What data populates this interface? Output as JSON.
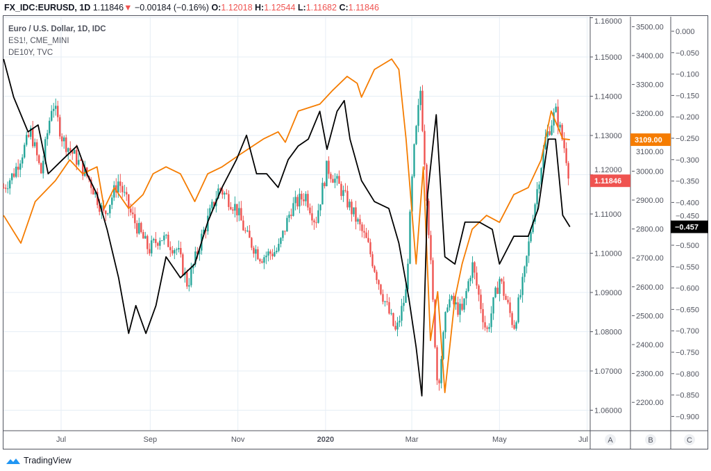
{
  "header": {
    "symbol": "FX_IDC:EURUSD, 1D",
    "last": "1.11846",
    "change": "−0.00184 (−0.16%)",
    "o_label": "O:",
    "o": "1.12018",
    "h_label": "H:",
    "h": "1.12544",
    "l_label": "L:",
    "l": "1.11682",
    "c_label": "C:",
    "c": "1.11846"
  },
  "legend": [
    "Euro / U.S. Dollar, 1D, IDC",
    "ES1!, CME_MINI",
    "DE10Y, TVC"
  ],
  "brand": "TradingView",
  "colors": {
    "up": "#26a69a",
    "down": "#ef5350",
    "es": "#f57c00",
    "de": "#000000",
    "grid": "#e6eef5"
  },
  "chart_data": {
    "type": "line",
    "x_unit": "days since 2019-07-01",
    "x_ticks": [
      {
        "label": "Jul",
        "t": 0
      },
      {
        "label": "Sep",
        "t": 62
      },
      {
        "label": "Nov",
        "t": 123
      },
      {
        "label": "2020",
        "t": 184
      },
      {
        "label": "Mar",
        "t": 244
      },
      {
        "label": "May",
        "t": 305
      },
      {
        "label": "Jul",
        "t": 366
      }
    ],
    "axes": [
      {
        "id": "A",
        "ticks": [
          "1.16000",
          "1.15000",
          "1.14000",
          "1.13000",
          "1.12000",
          "1.11000",
          "1.10000",
          "1.09000",
          "1.08000",
          "1.07000",
          "1.06000"
        ],
        "range": [
          1.0555,
          1.1603
        ],
        "last_label": "1.11846"
      },
      {
        "id": "B",
        "ticks": [
          "3500.00",
          "3400.00",
          "3300.00",
          "3200.00",
          "3100.00",
          "3000.00",
          "2900.00",
          "2800.00",
          "2700.00",
          "2600.00",
          "2500.00",
          "2400.00",
          "2300.00",
          "2200.00"
        ],
        "last_label": "3109.00"
      },
      {
        "id": "C",
        "ticks": [
          "0.000",
          "-0.050",
          "-0.100",
          "-0.150",
          "-0.200",
          "-0.250",
          "-0.300",
          "-0.350",
          "-0.400",
          "-0.450",
          "-0.500",
          "-0.550",
          "-0.600",
          "-0.650",
          "-0.700",
          "-0.750",
          "-0.800",
          "-0.850",
          "-0.900"
        ],
        "last_label": "-0.457"
      }
    ],
    "series": [
      {
        "name": "EURUSD",
        "type": "candlestick",
        "axis": "A",
        "t": [
          -40,
          -33,
          -21,
          -14,
          -6,
          1,
          11,
          20,
          30,
          40,
          49,
          61,
          69,
          81,
          88,
          98,
          110,
          122,
          129,
          139,
          151,
          160,
          170,
          177,
          185,
          194,
          204,
          213,
          223,
          233,
          240,
          245,
          250,
          255,
          262,
          269,
          279,
          286,
          296,
          305,
          315,
          322,
          329,
          337,
          344,
          351,
          354
        ],
        "close": [
          1.1167,
          1.1203,
          1.1309,
          1.1203,
          1.1388,
          1.1291,
          1.1238,
          1.1185,
          1.1096,
          1.1185,
          1.1096,
          1.1008,
          1.1043,
          1.1008,
          1.0919,
          1.1043,
          1.1167,
          1.1114,
          1.1043,
          1.099,
          1.1008,
          1.1114,
          1.115,
          1.1079,
          1.122,
          1.1167,
          1.1096,
          1.1026,
          1.0902,
          1.0796,
          1.0902,
          1.1238,
          1.1415,
          1.1114,
          1.0654,
          1.0884,
          1.0849,
          1.0973,
          1.0796,
          1.0937,
          1.0813,
          1.0937,
          1.1114,
          1.1291,
          1.1362,
          1.1256,
          1.11846
        ]
      },
      {
        "name": "ES1!",
        "axis": "B",
        "t": [
          -40,
          -28,
          -18,
          -4,
          6,
          15,
          25,
          30,
          37,
          47,
          57,
          64,
          73,
          83,
          93,
          102,
          112,
          126,
          141,
          151,
          156,
          165,
          180,
          189,
          199,
          206,
          209,
          218,
          226,
          230,
          235,
          240,
          247,
          252,
          257,
          262,
          267,
          274,
          279,
          286,
          296,
          305,
          315,
          325,
          334,
          341,
          349,
          354
        ],
        "values": [
          2847,
          2751,
          2895,
          2967,
          3039,
          2991,
          3015,
          2871,
          2943,
          2871,
          2919,
          2991,
          3015,
          2991,
          2895,
          2991,
          3015,
          3063,
          3112,
          3136,
          3100,
          3208,
          3232,
          3280,
          3328,
          3304,
          3256,
          3352,
          3376,
          3388,
          3352,
          3112,
          2679,
          3015,
          2414,
          2583,
          2234,
          2559,
          2679,
          2799,
          2847,
          2823,
          2919,
          2943,
          3039,
          3208,
          3112,
          3109
        ]
      },
      {
        "name": "DE10Y",
        "axis": "C",
        "t": [
          -40,
          -33,
          -23,
          -16,
          -9,
          1,
          11,
          18,
          25,
          32,
          40,
          47,
          52,
          59,
          66,
          73,
          83,
          93,
          102,
          112,
          122,
          129,
          136,
          143,
          151,
          158,
          165,
          172,
          180,
          185,
          192,
          197,
          201,
          209,
          218,
          228,
          235,
          242,
          247,
          251,
          255,
          261,
          267,
          274,
          281,
          291,
          300,
          305,
          315,
          325,
          332,
          339,
          344,
          349,
          354
        ],
        "values": [
          -0.065,
          -0.154,
          -0.235,
          -0.219,
          -0.333,
          -0.3,
          -0.268,
          -0.333,
          -0.381,
          -0.463,
          -0.576,
          -0.706,
          -0.641,
          -0.706,
          -0.641,
          -0.527,
          -0.576,
          -0.544,
          -0.446,
          -0.365,
          -0.3,
          -0.243,
          -0.333,
          -0.333,
          -0.365,
          -0.3,
          -0.268,
          -0.252,
          -0.187,
          -0.276,
          -0.187,
          -0.162,
          -0.252,
          -0.349,
          -0.398,
          -0.414,
          -0.495,
          -0.625,
          -0.738,
          -0.852,
          -0.381,
          -0.195,
          -0.527,
          -0.544,
          -0.446,
          -0.446,
          -0.463,
          -0.544,
          -0.479,
          -0.479,
          -0.414,
          -0.252,
          -0.252,
          -0.43,
          -0.457
        ]
      }
    ],
    "scale_buttons": [
      "A",
      "B",
      "C"
    ]
  }
}
